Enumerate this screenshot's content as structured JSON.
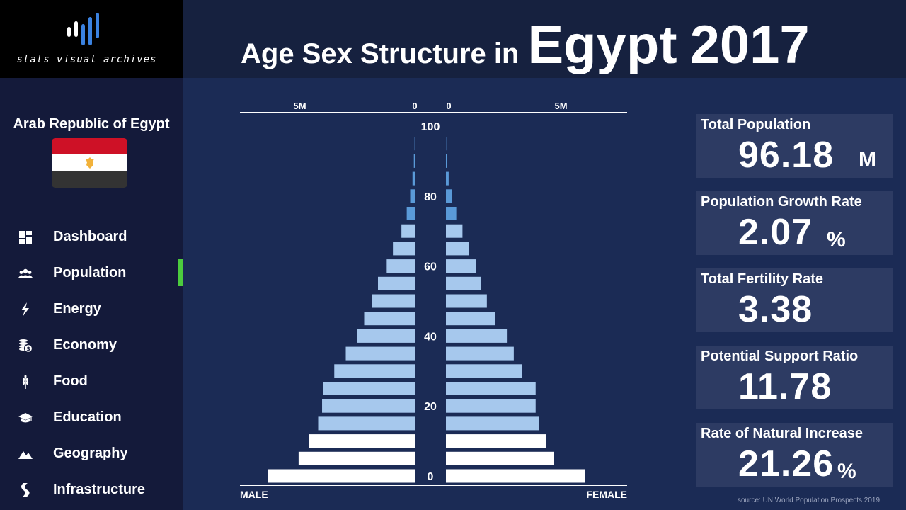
{
  "brand": {
    "name": "stats visual archives"
  },
  "header": {
    "title_prefix": "Age Sex Structure in",
    "country": "Egypt",
    "year": "2017"
  },
  "sidebar": {
    "country_full_name": "Arab Republic of Egypt",
    "flag_colors": [
      "#ce1126",
      "#ffffff",
      "#333333"
    ],
    "emblem_color": "#f2b23a",
    "active_indicator_color": "#4ccc3e",
    "items": [
      {
        "label": "Dashboard",
        "icon": "dashboard-icon"
      },
      {
        "label": "Population",
        "icon": "people-icon",
        "active": true
      },
      {
        "label": "Energy",
        "icon": "lightning-icon"
      },
      {
        "label": "Economy",
        "icon": "coins-icon"
      },
      {
        "label": "Food",
        "icon": "wheat-icon"
      },
      {
        "label": "Education",
        "icon": "graduation-cap-icon"
      },
      {
        "label": "Geography",
        "icon": "mountain-icon"
      },
      {
        "label": "Infrastructure",
        "icon": "road-icon"
      }
    ]
  },
  "stats": [
    {
      "label": "Total Population",
      "value": "96.18",
      "unit": "M"
    },
    {
      "label": "Population Growth Rate",
      "value": "2.07",
      "unit": "%"
    },
    {
      "label": "Total Fertility Rate",
      "value": "3.38",
      "unit": ""
    },
    {
      "label": "Potential Support Ratio",
      "value": "11.78",
      "unit": ""
    },
    {
      "label": "Rate of Natural Increase",
      "value": "21.26",
      "unit": "%"
    }
  ],
  "source": "source: UN World Population Prospects 2019",
  "chart_data": {
    "type": "bar",
    "orientation": "horizontal-pyramid",
    "top_axis_ticks": {
      "left": [
        "5M",
        "0"
      ],
      "right": [
        "0",
        "5M"
      ]
    },
    "age_tick_labels": [
      "100",
      "80",
      "60",
      "40",
      "20",
      "0"
    ],
    "xlabel_left": "MALE",
    "xlabel_right": "FEMALE",
    "categories": [
      "0-4",
      "5-9",
      "10-14",
      "15-19",
      "20-24",
      "25-29",
      "30-34",
      "35-39",
      "40-44",
      "45-49",
      "50-54",
      "55-59",
      "60-64",
      "65-69",
      "70-74",
      "75-79",
      "80-84",
      "85-89",
      "90-94",
      "95-99",
      "100+"
    ],
    "series": [
      {
        "name": "MALE",
        "unit": "millions",
        "values": [
          6.4,
          5.05,
          4.6,
          4.2,
          4.03,
          4.0,
          3.5,
          3.0,
          2.5,
          2.2,
          1.85,
          1.6,
          1.22,
          0.95,
          0.58,
          0.35,
          0.2,
          0.1,
          0.04,
          0.01,
          0.0
        ]
      },
      {
        "name": "FEMALE",
        "unit": "millions",
        "values": [
          6.05,
          4.7,
          4.35,
          4.05,
          3.9,
          3.9,
          3.3,
          2.95,
          2.65,
          2.15,
          1.78,
          1.53,
          1.32,
          1.0,
          0.72,
          0.45,
          0.25,
          0.12,
          0.05,
          0.01,
          0.0
        ]
      }
    ],
    "bar_colors": {
      "white_groups": [
        "0-4",
        "5-9",
        "10-14"
      ],
      "white": "#ffffff",
      "light": "#a6c8ed",
      "medium": "#5a9ad8"
    },
    "xlim_millions": [
      0,
      7
    ]
  }
}
